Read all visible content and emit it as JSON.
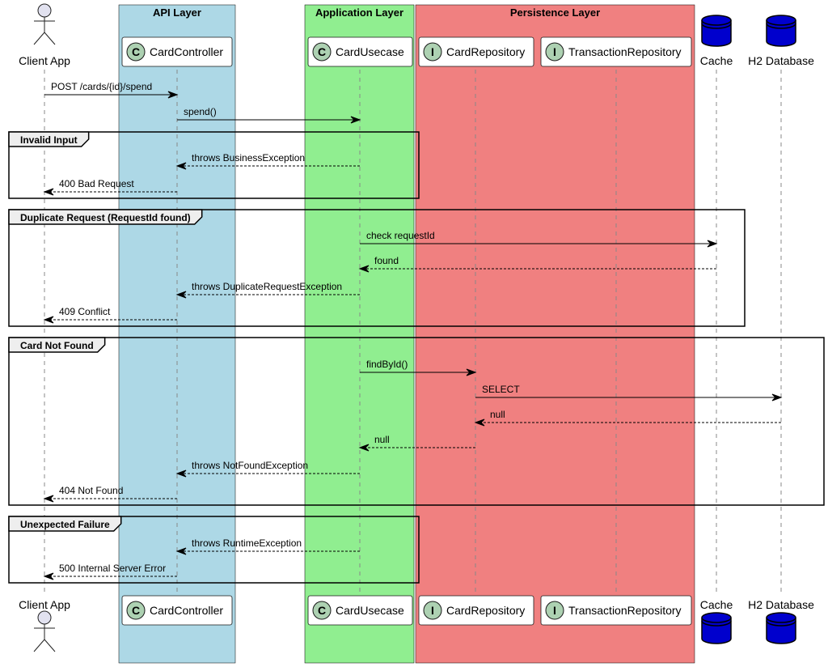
{
  "boxes": [
    {
      "id": "api",
      "title": "API Layer",
      "color": "#ADD8E6"
    },
    {
      "id": "app",
      "title": "Application Layer",
      "color": "#90EE90"
    },
    {
      "id": "persist",
      "title": "Persistence Layer",
      "color": "#F08080"
    }
  ],
  "participants": [
    {
      "id": "client",
      "label": "Client App",
      "kind": "actor"
    },
    {
      "id": "controller",
      "label": "CardController",
      "kind": "class",
      "stereotype": "C"
    },
    {
      "id": "usecase",
      "label": "CardUsecase",
      "kind": "class",
      "stereotype": "C"
    },
    {
      "id": "cardrepo",
      "label": "CardRepository",
      "kind": "interface",
      "stereotype": "I"
    },
    {
      "id": "txrepo",
      "label": "TransactionRepository",
      "kind": "interface",
      "stereotype": "I"
    },
    {
      "id": "cache",
      "label": "Cache",
      "kind": "database"
    },
    {
      "id": "h2",
      "label": "H2 Database",
      "kind": "database"
    }
  ],
  "messages": [
    {
      "from": "client",
      "to": "controller",
      "label": "POST /cards/{id}/spend",
      "style": "solid"
    },
    {
      "from": "controller",
      "to": "usecase",
      "label": "spend()",
      "style": "solid"
    },
    {
      "from": "usecase",
      "to": "controller",
      "label": "throws BusinessException",
      "style": "dashed"
    },
    {
      "from": "controller",
      "to": "client",
      "label": "400 Bad Request",
      "style": "dashed"
    },
    {
      "from": "usecase",
      "to": "cache",
      "label": "check requestId",
      "style": "solid"
    },
    {
      "from": "cache",
      "to": "usecase",
      "label": "found",
      "style": "dashed"
    },
    {
      "from": "usecase",
      "to": "controller",
      "label": "throws DuplicateRequestException",
      "style": "dashed"
    },
    {
      "from": "controller",
      "to": "client",
      "label": "409 Conflict",
      "style": "dashed"
    },
    {
      "from": "usecase",
      "to": "cardrepo",
      "label": "findById()",
      "style": "solid"
    },
    {
      "from": "cardrepo",
      "to": "h2",
      "label": "SELECT",
      "style": "solid"
    },
    {
      "from": "h2",
      "to": "cardrepo",
      "label": "null",
      "style": "dashed"
    },
    {
      "from": "cardrepo",
      "to": "usecase",
      "label": "null",
      "style": "dashed"
    },
    {
      "from": "usecase",
      "to": "controller",
      "label": "throws NotFoundException",
      "style": "dashed"
    },
    {
      "from": "controller",
      "to": "client",
      "label": "404 Not Found",
      "style": "dashed"
    },
    {
      "from": "usecase",
      "to": "controller",
      "label": "throws RuntimeException",
      "style": "dashed"
    },
    {
      "from": "controller",
      "to": "client",
      "label": "500 Internal Server Error",
      "style": "dashed"
    }
  ],
  "groups": [
    {
      "label": "Invalid Input",
      "first": 2,
      "last": 3
    },
    {
      "label": "Duplicate Request (RequestId found)",
      "first": 4,
      "last": 7
    },
    {
      "label": "Card Not Found",
      "first": 8,
      "last": 13
    },
    {
      "label": "Unexpected Failure",
      "first": 14,
      "last": 15
    }
  ],
  "colors": {
    "lifeline": "#888888",
    "actor_fill": "#E2E2F0",
    "stereotype_fill": "#ADD1B2",
    "database_fill": "#0000CD",
    "group_tab": "#EEEEEE"
  }
}
